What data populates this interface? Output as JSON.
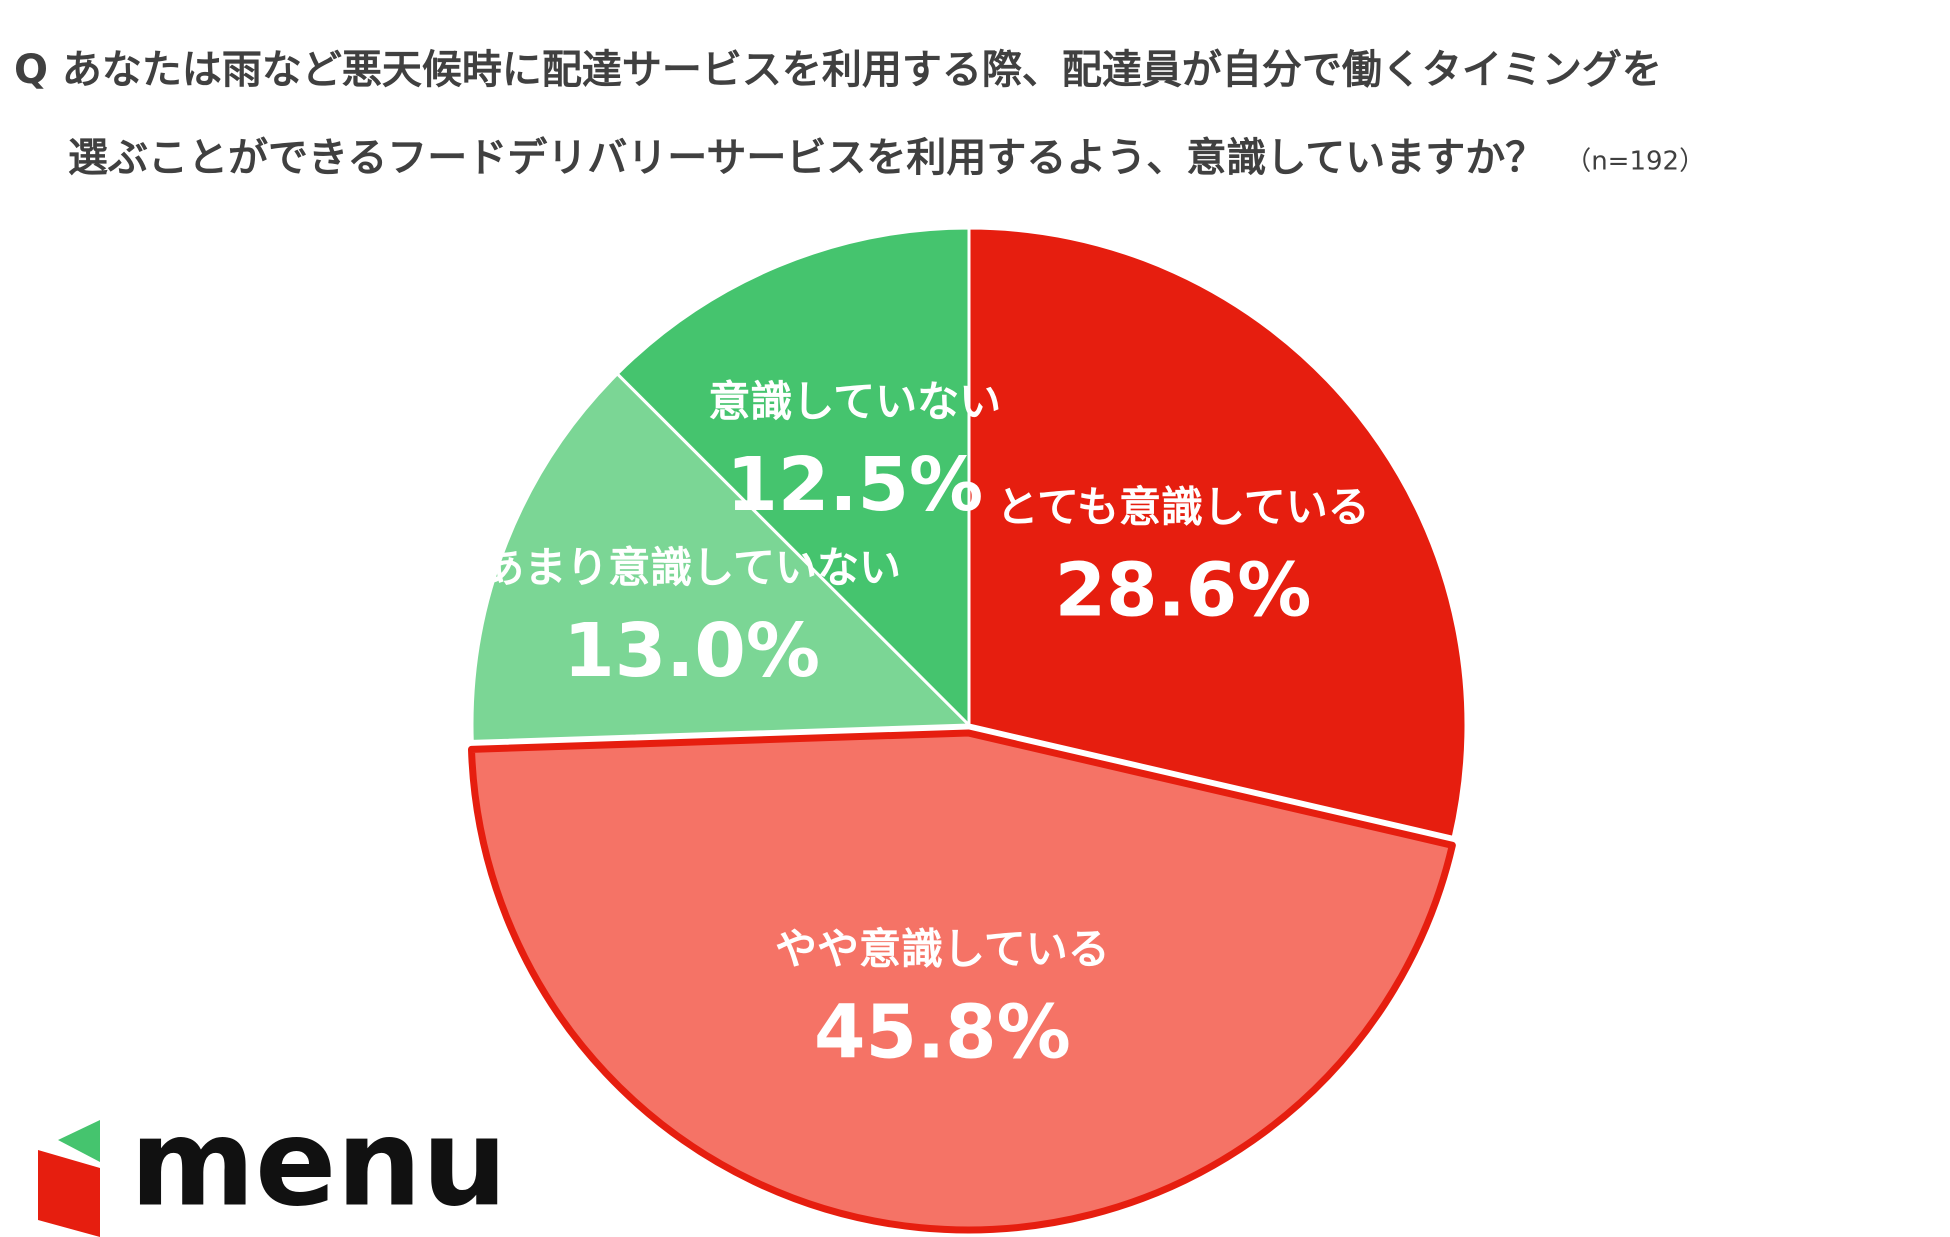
{
  "chart_data": {
    "type": "pie",
    "title": [
      "Q あなたは雨など悪天候時に配達サービスを利用する際、配達員が自分で働くタイミングを",
      "選ぶことができるフードデリバリーサービスを利用するよう、意識していますか？"
    ],
    "subtitle": "（n=192）",
    "categories": [
      "とても意識している",
      "やや意識している",
      "あまり意識していない",
      "意識していない"
    ],
    "values": [
      28.6,
      45.8,
      13.0,
      12.5
    ],
    "value_labels": [
      "28.6%",
      "45.8%",
      "13.0%",
      "12.5%"
    ],
    "colors": [
      "#e61e0f",
      "#f57366",
      "#7bd695",
      "#45c46e"
    ],
    "highlight": 1
  },
  "logo": "menu"
}
